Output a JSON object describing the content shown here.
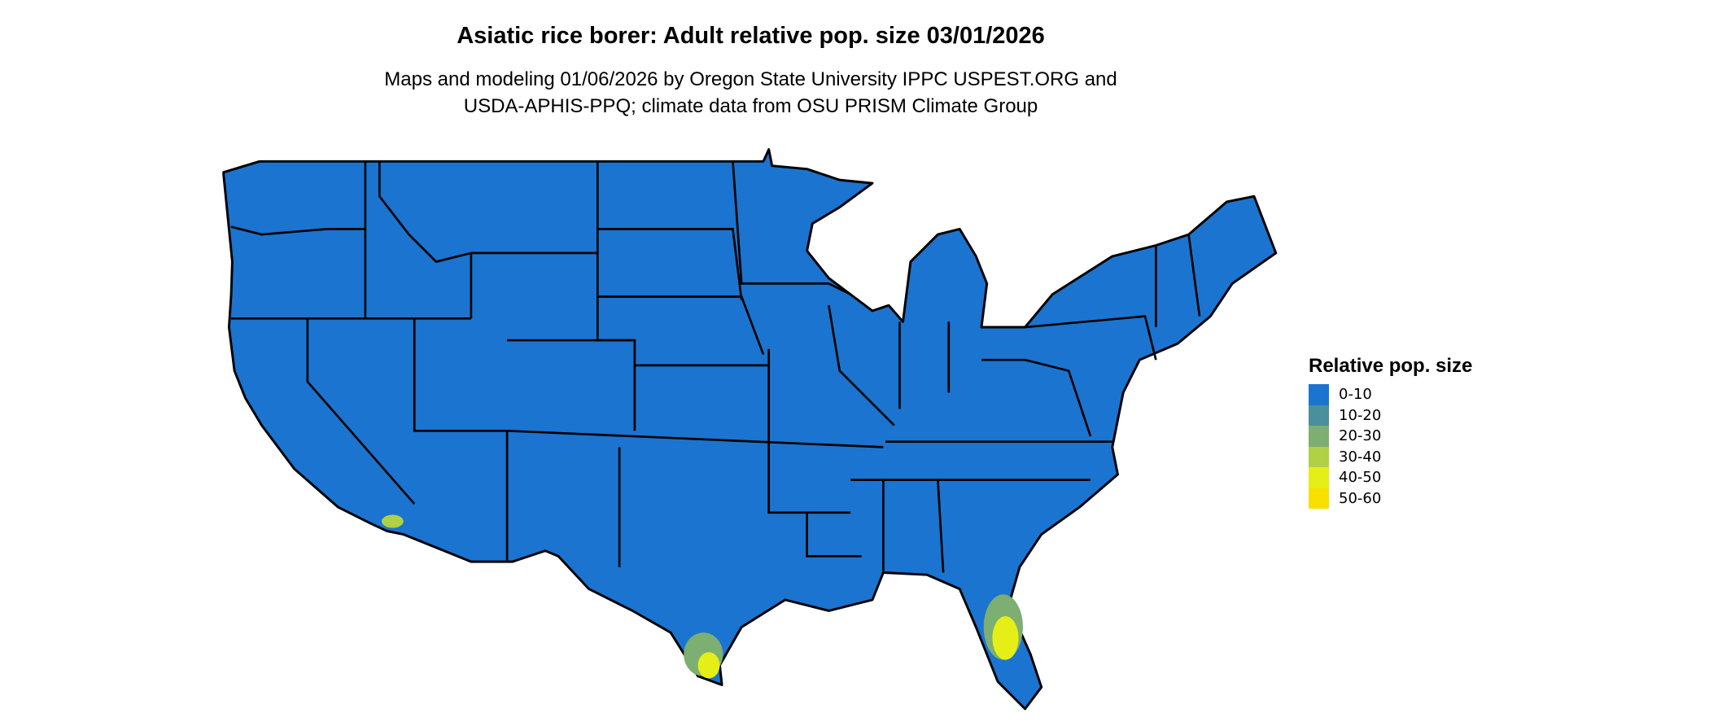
{
  "title": "Asiatic rice borer: Adult relative pop. size 03/01/2026",
  "subtitle_lines": [
    "Maps and modeling 01/06/2026 by Oregon State University IPPC USPEST.ORG and",
    "USDA-APHIS-PPQ; climate data from OSU PRISM Climate Group"
  ],
  "legend": {
    "title": "Relative pop. size",
    "items": [
      {
        "label": "0-10",
        "color": "#1b74cf"
      },
      {
        "label": "10-20",
        "color": "#4a8f9c"
      },
      {
        "label": "20-30",
        "color": "#7dae72"
      },
      {
        "label": "30-40",
        "color": "#b0d045"
      },
      {
        "label": "40-50",
        "color": "#e5ef17"
      },
      {
        "label": "50-60",
        "color": "#f7e000"
      }
    ]
  }
}
